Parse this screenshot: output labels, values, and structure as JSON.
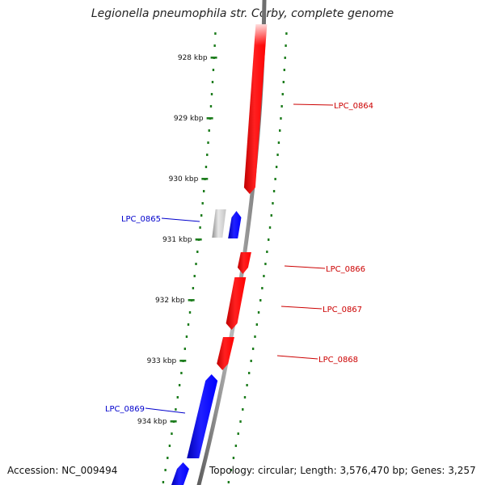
{
  "title": "Legionella pneumophila str. Corby, complete genome",
  "accession": "Accession: NC_009494",
  "summary": "Topology: circular; Length: 3,576,470 bp; Genes: 3,257",
  "colors": {
    "forward_gene": "#ff0000",
    "reverse_gene": "#0000ff",
    "pseudo_gene": "#b4b4b4",
    "backbone": "#808080",
    "ruler": "#1e7d1e",
    "forward_label": "#cc0000",
    "reverse_label": "#0000cc"
  },
  "ruler_ticks": [
    "928 kbp",
    "929 kbp",
    "930 kbp",
    "931 kbp",
    "932 kbp",
    "933 kbp",
    "934 kbp"
  ],
  "genes": [
    {
      "name": "LPC_0864",
      "strand": "forward",
      "labeled": true
    },
    {
      "name": "",
      "strand": "pseudo",
      "labeled": false
    },
    {
      "name": "LPC_0865",
      "strand": "reverse",
      "labeled": true
    },
    {
      "name": "LPC_0866",
      "strand": "forward",
      "labeled": true
    },
    {
      "name": "LPC_0867",
      "strand": "forward",
      "labeled": true
    },
    {
      "name": "LPC_0868",
      "strand": "forward",
      "labeled": true
    },
    {
      "name": "LPC_0869",
      "strand": "reverse",
      "labeled": true
    },
    {
      "name": "",
      "strand": "reverse",
      "labeled": false
    }
  ]
}
